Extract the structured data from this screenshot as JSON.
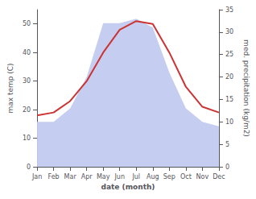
{
  "chart_data": {
    "type": "line",
    "xlabel": "date (month)",
    "ylabel": "max temp (C)",
    "y2label": "med. precipitation (kg/m2)",
    "categories": [
      "Jan",
      "Feb",
      "Mar",
      "Apr",
      "May",
      "Jun",
      "Jul",
      "Aug",
      "Sep",
      "Oct",
      "Nov",
      "Dec"
    ],
    "series": [
      {
        "type": "area",
        "color": "#c5cdf0",
        "axis": "y2",
        "values": [
          10,
          10,
          13,
          20,
          32,
          32,
          33,
          31,
          21,
          13,
          10,
          9
        ]
      },
      {
        "type": "line",
        "color": "#cc3333",
        "values": [
          18,
          19,
          23,
          30,
          40,
          48,
          51,
          50,
          40,
          28,
          21,
          19
        ]
      }
    ],
    "ylim": [
      0,
      55
    ],
    "yticks": [
      0,
      10,
      20,
      30,
      40,
      50
    ],
    "y2lim": [
      0,
      35
    ],
    "y2ticks": [
      0,
      5,
      10,
      15,
      20,
      25,
      30,
      35
    ],
    "grid": false
  }
}
